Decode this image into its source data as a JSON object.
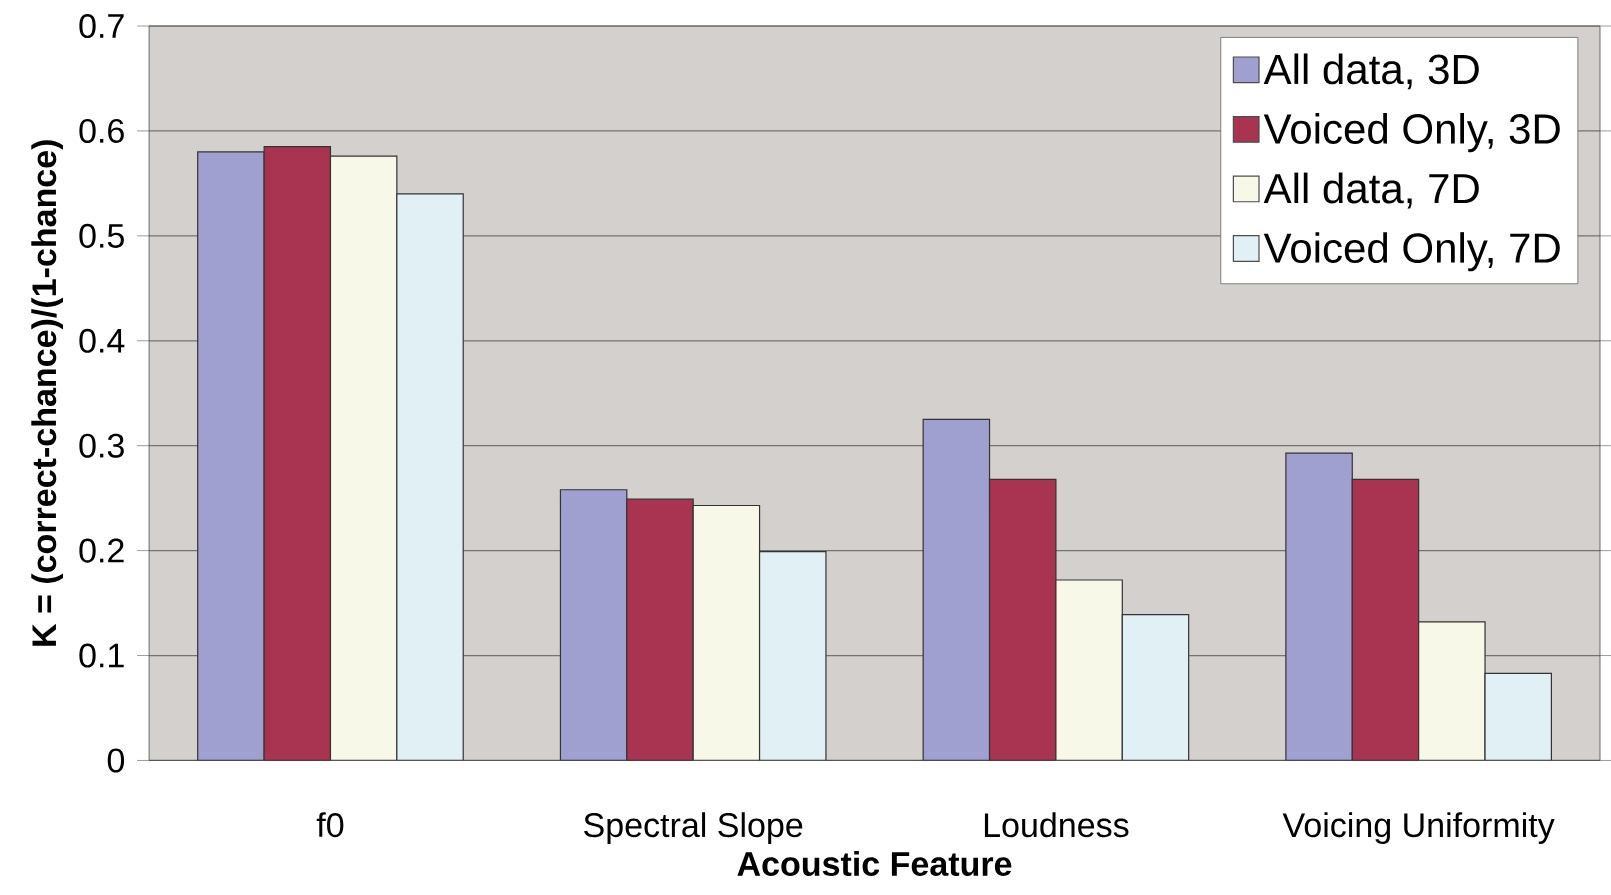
{
  "chart_data": {
    "type": "bar",
    "xlabel": "Acoustic Feature",
    "ylabel": "K = (correct-chance)/(1-chance)",
    "categories": [
      "f0",
      "Spectral Slope",
      "Loudness",
      "Voicing Uniformity"
    ],
    "series": [
      {
        "name": "All data, 3D",
        "color": "#a0a0d0",
        "values": [
          0.58,
          0.258,
          0.325,
          0.293
        ]
      },
      {
        "name": "Voiced Only, 3D",
        "color": "#a83452",
        "values": [
          0.585,
          0.249,
          0.268,
          0.268
        ]
      },
      {
        "name": "All data, 7D",
        "color": "#f8f8e8",
        "values": [
          0.576,
          0.243,
          0.172,
          0.132
        ]
      },
      {
        "name": "Voiced Only, 7D",
        "color": "#e0f0f4",
        "values": [
          0.54,
          0.199,
          0.139,
          0.083
        ]
      }
    ],
    "ylim": [
      0,
      0.7
    ],
    "yticks": [
      0,
      0.1,
      0.2,
      0.3,
      0.4,
      0.5,
      0.6,
      0.7
    ],
    "grid": "y",
    "legend": "top right"
  }
}
